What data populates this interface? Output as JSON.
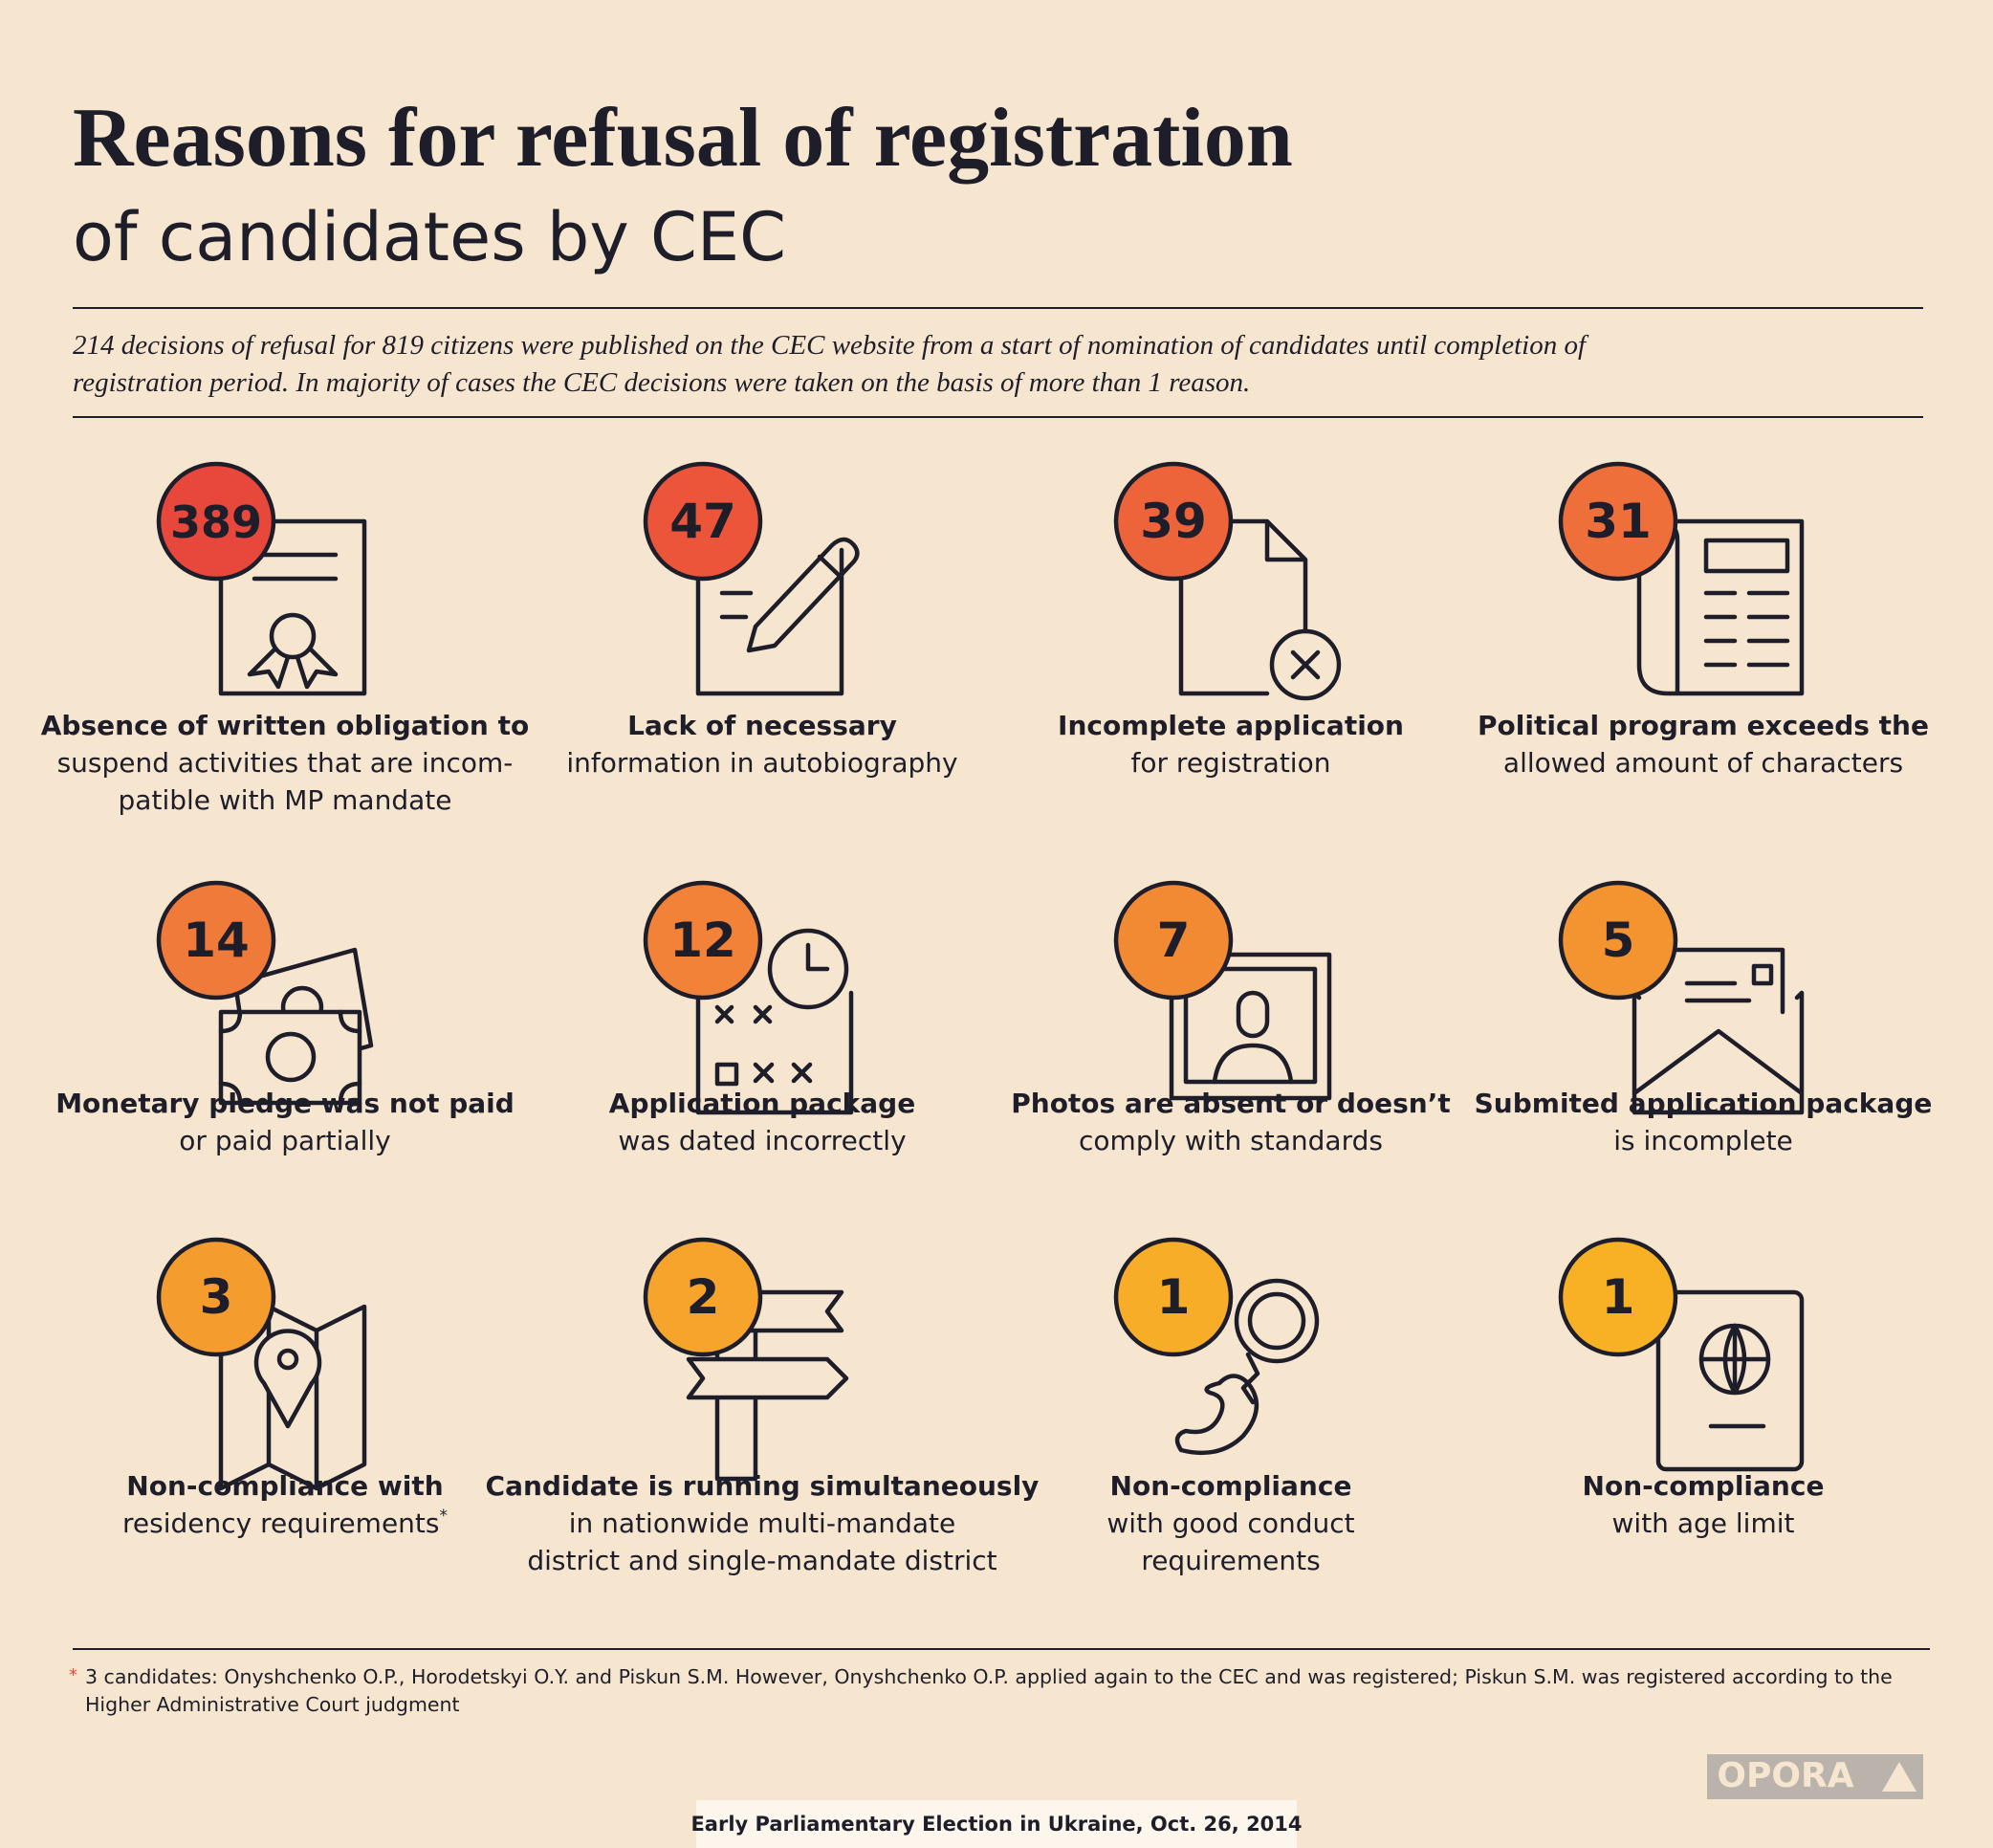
{
  "header": {
    "title": "Reasons for refusal of registration",
    "subtitle": "of candidates by CEC"
  },
  "intro": [
    "214 decisions of refusal for 819 citizens were published on the CEC website from a start of nomination of candidates until completion of",
    "registration period. In majority of cases the CEC decisions were taken on the basis of more than 1 reason."
  ],
  "items": [
    {
      "count": 389,
      "color": "#e8473c",
      "bold": [
        "Absence of written obligation to"
      ],
      "text": [
        "suspend activities that are incom-",
        "patible with MP mandate"
      ]
    },
    {
      "count": 47,
      "color": "#ec553a",
      "bold": [
        "Lack of necessary"
      ],
      "text": [
        "information in autobiography"
      ]
    },
    {
      "count": 39,
      "color": "#ee643a",
      "bold": [
        "Incomplete application"
      ],
      "text": [
        "for registration"
      ]
    },
    {
      "count": 31,
      "color": "#ef6f3a",
      "bold": [
        "Political program exceeds the"
      ],
      "text": [
        "allowed amount of characters"
      ]
    },
    {
      "count": 14,
      "color": "#f07a39",
      "bold": [
        "Monetary pledge was not paid"
      ],
      "text": [
        "or paid partially"
      ]
    },
    {
      "count": 12,
      "color": "#f18237",
      "bold": [
        "Application package"
      ],
      "text": [
        "was dated incorrectly"
      ]
    },
    {
      "count": 7,
      "color": "#f28a34",
      "bold": [
        "Photos are absent or doesn’t"
      ],
      "text": [
        "comply with standards"
      ]
    },
    {
      "count": 5,
      "color": "#f49431",
      "bold": [
        "Submited application package"
      ],
      "text": [
        "is incomplete"
      ]
    },
    {
      "count": 3,
      "color": "#f59c2f",
      "bold": [
        "Non-compliance with"
      ],
      "text": [
        "residency requirements"
      ],
      "mark": "*"
    },
    {
      "count": 2,
      "color": "#f6a42c",
      "bold": [
        "Candidate is running simultaneously"
      ],
      "text": [
        "in nationwide multi-mandate",
        "district and single-mandate district"
      ]
    },
    {
      "count": 1,
      "color": "#f7ad27",
      "bold": [
        "Non-compliance"
      ],
      "text": [
        "with good conduct",
        "requirements"
      ]
    },
    {
      "count": 1,
      "color": "#f8b124",
      "bold": [
        "Non-compliance"
      ],
      "text": [
        "with age limit"
      ]
    }
  ],
  "footnote": {
    "mark": "*",
    "lines": [
      "3 candidates: Onyshchenko O.P., Horodetskyi O.Y. and Piskun S.M. However, Onyshchenko O.P. applied again to the CEC and was registered; Piskun S.M. was registered according to the",
      "Higher Administrative Court judgment"
    ]
  },
  "logo": "OPORA",
  "footer": "Early Parliamentary Election in Ukraine, Oct. 26, 2014"
}
